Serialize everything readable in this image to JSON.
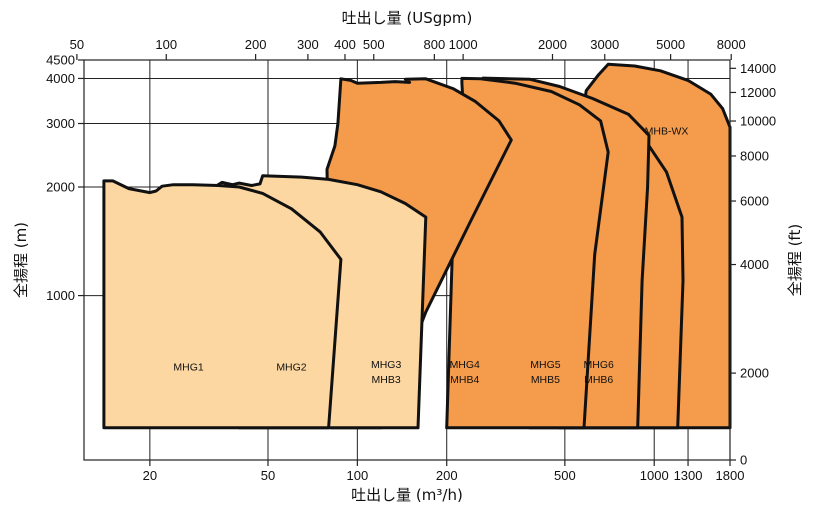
{
  "chart_data": {
    "type": "area",
    "title": "",
    "top_axis": {
      "label": "吐出し量 (USgpm)",
      "ticks": [
        "50",
        "100",
        "200",
        "300",
        "400",
        "500",
        "800",
        "1000",
        "2000",
        "3000",
        "5000",
        "8000"
      ],
      "scale": "log"
    },
    "x_axis": {
      "label": "吐出し量 (m³/h)",
      "unit": "m³/h",
      "scale": "log",
      "range": [
        12,
        1800
      ],
      "ticks": [
        "20",
        "50",
        "100",
        "200",
        "500",
        "1000",
        "1300",
        "1800"
      ]
    },
    "y_axis": {
      "label": "全揚程 (m)",
      "unit": "m",
      "scale": "log",
      "range": [
        350,
        4500
      ],
      "ticks": [
        "1000",
        "2000",
        "3000",
        "4000",
        "4500"
      ]
    },
    "right_axis": {
      "label": "全揚程 (ft)",
      "unit": "ft",
      "ticks": [
        "0",
        "2000",
        "4000",
        "6000",
        "8000",
        "10000",
        "12000",
        "14000"
      ]
    },
    "grid": true,
    "colors": {
      "light_orange": "#FCD7A1",
      "orange": "#F59B4C",
      "outline": "#111111"
    },
    "regions": [
      {
        "label_lines": [
          "MHB-WX"
        ],
        "fill": "orange",
        "label_at": [
          1100,
          2800
        ],
        "outline": [
          [
            550,
            430
          ],
          [
            1800,
            430
          ],
          [
            1800,
            2930
          ],
          [
            1700,
            3300
          ],
          [
            1550,
            3620
          ],
          [
            1300,
            3950
          ],
          [
            1050,
            4200
          ],
          [
            860,
            4330
          ],
          [
            700,
            4380
          ],
          [
            650,
            4100
          ],
          [
            590,
            3700
          ],
          [
            570,
            3000
          ],
          [
            540,
            2450
          ],
          [
            520,
            1900
          ],
          [
            490,
            1000
          ],
          [
            480,
            430
          ]
        ]
      },
      {
        "label_lines": [
          "MHG6",
          "MHB6"
        ],
        "fill": "orange",
        "label_at": [
          650,
          630
        ],
        "outline": [
          [
            520,
            430
          ],
          [
            1200,
            430
          ],
          [
            1250,
            1100
          ],
          [
            1240,
            1650
          ],
          [
            1100,
            2200
          ],
          [
            960,
            2600
          ],
          [
            840,
            2880
          ],
          [
            700,
            3200
          ],
          [
            530,
            3600
          ],
          [
            520,
            2000
          ]
        ]
      },
      {
        "label_lines": [
          "MHG5",
          "MHB5"
        ],
        "fill": "orange",
        "label_at": [
          430,
          630
        ],
        "outline": [
          [
            380,
            430
          ],
          [
            880,
            430
          ],
          [
            910,
            1100
          ],
          [
            950,
            2000
          ],
          [
            960,
            2780
          ],
          [
            820,
            3180
          ],
          [
            620,
            3520
          ],
          [
            480,
            3800
          ],
          [
            380,
            3980
          ],
          [
            265,
            4010
          ],
          [
            275,
            3930
          ],
          [
            310,
            3400
          ],
          [
            360,
            2400
          ],
          [
            380,
            1200
          ]
        ]
      },
      {
        "label_lines": [
          "MHG4",
          "MHB4"
        ],
        "fill": "orange",
        "label_at": [
          230,
          630
        ],
        "outline": [
          [
            200,
            430
          ],
          [
            580,
            430
          ],
          [
            630,
            1300
          ],
          [
            700,
            2500
          ],
          [
            660,
            3050
          ],
          [
            560,
            3380
          ],
          [
            450,
            3680
          ],
          [
            340,
            3880
          ],
          [
            260,
            3990
          ],
          [
            225,
            4000
          ],
          [
            225,
            3880
          ],
          [
            230,
            2800
          ],
          [
            210,
            1500
          ]
        ]
      },
      {
        "label_lines": [
          "MHG3",
          "MHB3"
        ],
        "fill": "orange",
        "label_at": [
          125,
          630
        ],
        "outline": [
          [
            82,
            430
          ],
          [
            120,
            430
          ],
          [
            170,
            900
          ],
          [
            240,
            1600
          ],
          [
            330,
            2700
          ],
          [
            300,
            3050
          ],
          [
            250,
            3450
          ],
          [
            210,
            3750
          ],
          [
            170,
            3990
          ],
          [
            145,
            3980
          ],
          [
            150,
            3900
          ],
          [
            134,
            3920
          ],
          [
            120,
            3900
          ],
          [
            100,
            3880
          ],
          [
            95,
            3950
          ],
          [
            88,
            3990
          ],
          [
            86,
            3000
          ],
          [
            84,
            2600
          ],
          [
            79,
            2240
          ]
        ]
      },
      {
        "label_lines": [
          "MHG2"
        ],
        "fill": "light_orange",
        "label_at": [
          60,
          620
        ],
        "outline": [
          [
            40,
            430
          ],
          [
            160,
            430
          ],
          [
            170,
            1650
          ],
          [
            145,
            1800
          ],
          [
            120,
            1940
          ],
          [
            100,
            2030
          ],
          [
            80,
            2100
          ],
          [
            65,
            2130
          ],
          [
            48,
            2150
          ],
          [
            47,
            2040
          ],
          [
            44,
            2020
          ],
          [
            40,
            2050
          ],
          [
            38,
            2030
          ],
          [
            35,
            2060
          ],
          [
            34,
            2030
          ],
          [
            33,
            2000
          ],
          [
            40,
            1300
          ]
        ]
      },
      {
        "label_lines": [
          "MHG1"
        ],
        "fill": "light_orange",
        "label_at": [
          27,
          620
        ],
        "outline": [
          [
            14,
            430
          ],
          [
            80,
            430
          ],
          [
            88,
            1260
          ],
          [
            75,
            1500
          ],
          [
            60,
            1740
          ],
          [
            48,
            1920
          ],
          [
            40,
            2000
          ],
          [
            34,
            2020
          ],
          [
            28,
            2030
          ],
          [
            24,
            2030
          ],
          [
            22,
            2010
          ],
          [
            21,
            1950
          ],
          [
            20,
            1930
          ],
          [
            17,
            1980
          ],
          [
            15,
            2080
          ],
          [
            14,
            2080
          ]
        ]
      }
    ]
  }
}
